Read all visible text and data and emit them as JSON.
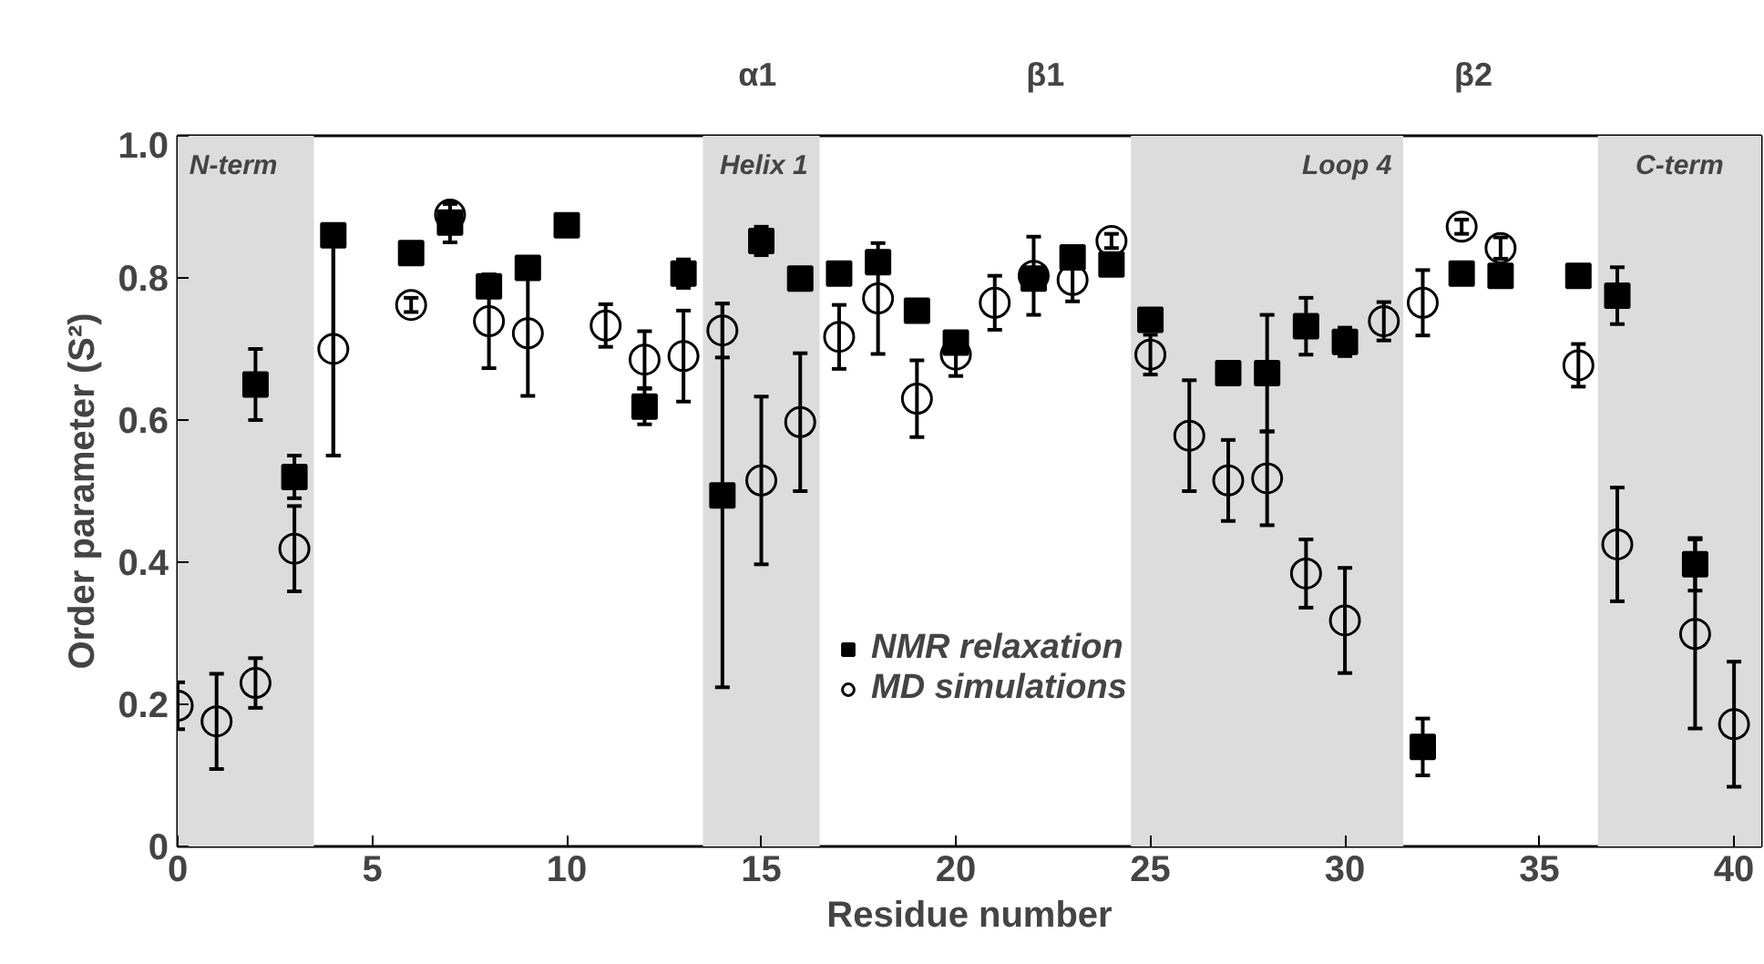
{
  "chart_data": {
    "type": "scatter",
    "xlabel": "Residue number",
    "ylabel": "Order parameter (S²)",
    "xlim": [
      0,
      40.7
    ],
    "ylim": [
      0,
      1
    ],
    "xticks": [
      0,
      5,
      10,
      15,
      20,
      25,
      30,
      35,
      40
    ],
    "yticks": [
      0,
      {
        "value": 0.2,
        "label": "0.2"
      },
      {
        "value": 0.4,
        "label": "0.4"
      },
      {
        "value": 0.6,
        "label": "0.6"
      },
      {
        "value": 0.8,
        "label": "0.8"
      },
      {
        "value": 1,
        "label": "1.0"
      }
    ],
    "grid": false,
    "legend": "bottom",
    "bands": [
      {
        "axis": "x",
        "from": 0,
        "to": 3.5,
        "label": "N-term",
        "color": "#dcdcdc"
      },
      {
        "axis": "x",
        "from": 13.5,
        "to": 16.5,
        "label": "Helix 1",
        "color": "#dcdcdc"
      },
      {
        "axis": "x",
        "from": 24.5,
        "to": 31.5,
        "label": "Loop 4",
        "color": "#dcdcdc"
      },
      {
        "axis": "x",
        "from": 36.5,
        "to": 40.7,
        "label": "C-term",
        "color": "#dcdcdc"
      }
    ],
    "annotations": [
      "α1",
      "β1",
      "β2"
    ],
    "series": [
      {
        "name": "NMR relaxation",
        "color": "#000000",
        "marker": "square",
        "x": [
          2,
          3,
          4,
          6,
          7,
          8,
          9,
          10,
          12,
          13,
          14,
          15,
          16,
          17,
          18,
          19,
          20,
          22,
          23,
          24,
          25,
          27,
          28,
          29,
          30,
          32,
          33,
          34,
          36,
          37,
          39
        ],
        "values": [
          0.65,
          0.52,
          0.86,
          0.835,
          0.878,
          0.788,
          0.814,
          0.874,
          0.619,
          0.806,
          0.494,
          0.852,
          0.799,
          0.806,
          0.822,
          0.754,
          0.709,
          0.799,
          0.829,
          0.819,
          0.741,
          0.666,
          0.666,
          0.732,
          0.71,
          0.14,
          0.806,
          0.803,
          0.803,
          0.775,
          0.397
        ],
        "errors": [
          0.05,
          0.03,
          [
            0.55,
            0.86
          ],
          null,
          0.028,
          null,
          null,
          null,
          0.025,
          0.02,
          0.27,
          0.02,
          null,
          null,
          null,
          null,
          null,
          null,
          null,
          null,
          null,
          null,
          0.082,
          0.04,
          0.02,
          0.04,
          null,
          null,
          null,
          0.04,
          0.037
        ]
      },
      {
        "name": "MD simulations",
        "color": "#000000",
        "marker": "circle",
        "x": [
          0,
          1,
          2,
          3,
          4,
          6,
          7,
          8,
          9,
          11,
          12,
          13,
          14,
          15,
          16,
          17,
          18,
          19,
          20,
          21,
          22,
          23,
          24,
          25,
          26,
          27,
          28,
          29,
          30,
          31,
          32,
          33,
          34,
          36,
          37,
          39,
          40
        ],
        "values": [
          0.198,
          0.176,
          0.23,
          0.419,
          0.7,
          0.762,
          0.889,
          0.739,
          0.722,
          0.733,
          0.685,
          0.69,
          0.726,
          0.515,
          0.597,
          0.717,
          0.771,
          0.63,
          0.692,
          0.765,
          0.803,
          0.797,
          0.852,
          0.692,
          0.578,
          0.515,
          0.518,
          0.384,
          0.318,
          0.739,
          0.765,
          0.872,
          0.842,
          0.677,
          0.425,
          0.299,
          0.172
        ],
        "errors": [
          0.033,
          0.067,
          0.035,
          0.06,
          0.15,
          0.01,
          0.015,
          0.066,
          0.088,
          0.03,
          0.04,
          0.064,
          0.038,
          0.118,
          0.097,
          0.045,
          0.078,
          0.054,
          0.03,
          0.038,
          0.055,
          0.03,
          0.01,
          0.028,
          0.078,
          0.057,
          0.066,
          0.048,
          0.074,
          0.027,
          0.046,
          0.01,
          0.015,
          0.03,
          0.08,
          0.133,
          0.088
        ]
      }
    ]
  }
}
